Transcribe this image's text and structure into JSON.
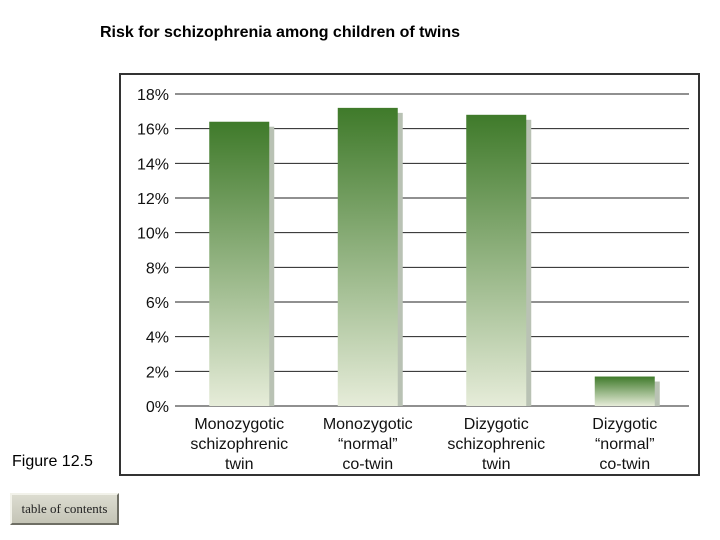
{
  "figure_label": "Figure 12.5",
  "toc_button": {
    "label": "table of contents"
  },
  "colors": {
    "bar_top": "#3f7a2a",
    "bar_bottom": "#e6ecd9",
    "bar_shadow": "#b9c2b4",
    "grid": "#222222"
  },
  "chart_data": {
    "type": "bar",
    "title": "Risk for schizophrenia among children of twins",
    "xlabel": "",
    "ylabel": "",
    "ylim": [
      0,
      18
    ],
    "y_tick_step": 2,
    "y_tick_labels": [
      "0%",
      "2%",
      "4%",
      "6%",
      "8%",
      "10%",
      "12%",
      "14%",
      "16%",
      "18%"
    ],
    "grid": true,
    "categories": [
      [
        "Monozygotic",
        "schizophrenic",
        "twin"
      ],
      [
        "Monozygotic",
        "“normal”",
        "co-twin"
      ],
      [
        "Dizygotic",
        "schizophrenic",
        "twin"
      ],
      [
        "Dizygotic",
        "“normal”",
        "co-twin"
      ]
    ],
    "values": [
      16.4,
      17.2,
      16.8,
      1.7
    ]
  }
}
